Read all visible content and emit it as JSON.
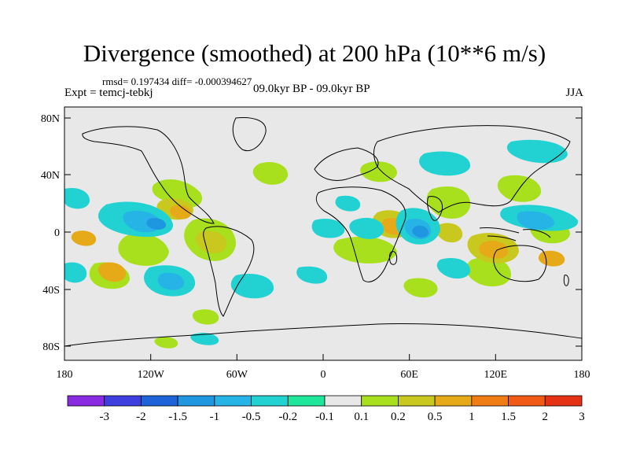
{
  "header": {
    "title": "Divergence (smoothed) at 200 hPa (10**6 m/s)",
    "stats": "rmsd= 0.197434 diff= -0.000394627",
    "experiment": "Expt = temcj-tebkj",
    "period": "09.0kyr BP - 09.0kyr BP",
    "season": "JJA"
  },
  "axes": {
    "lat_labels": [
      "80N",
      "40N",
      "0",
      "40S",
      "80S"
    ],
    "lon_labels": [
      "180",
      "120W",
      "60W",
      "0",
      "60E",
      "120E",
      "180"
    ]
  },
  "colorbar": {
    "labels": [
      "-3",
      "-2",
      "-1.5",
      "-1",
      "-0.5",
      "-0.2",
      "-0.1",
      "0.1",
      "0.2",
      "0.5",
      "1",
      "1.5",
      "2",
      "3"
    ],
    "colors": [
      "#8a2be2",
      "#3f3fe0",
      "#1e64d8",
      "#1e96e0",
      "#26b4e6",
      "#22d2d2",
      "#1ee69a",
      "#e8e8e8",
      "#a8e01e",
      "#c8c81e",
      "#e6aa18",
      "#f07d14",
      "#f05a14",
      "#e63214"
    ]
  },
  "chart_data": {
    "type": "contour-map",
    "title": "Divergence (smoothed) at 200 hPa (10**6 m/s)",
    "variable": "divergence (smoothed)",
    "level_hPa": 200,
    "units": "10**6 m/s",
    "season": "JJA",
    "rmsd": 0.197434,
    "diff": -0.000394627,
    "lon_range": [
      -180,
      180
    ],
    "lat_range": [
      -90,
      90
    ],
    "contour_levels": [
      -3,
      -2,
      -1.5,
      -1,
      -0.5,
      -0.2,
      -0.1,
      0.1,
      0.2,
      0.5,
      1,
      1.5,
      2,
      3
    ]
  }
}
